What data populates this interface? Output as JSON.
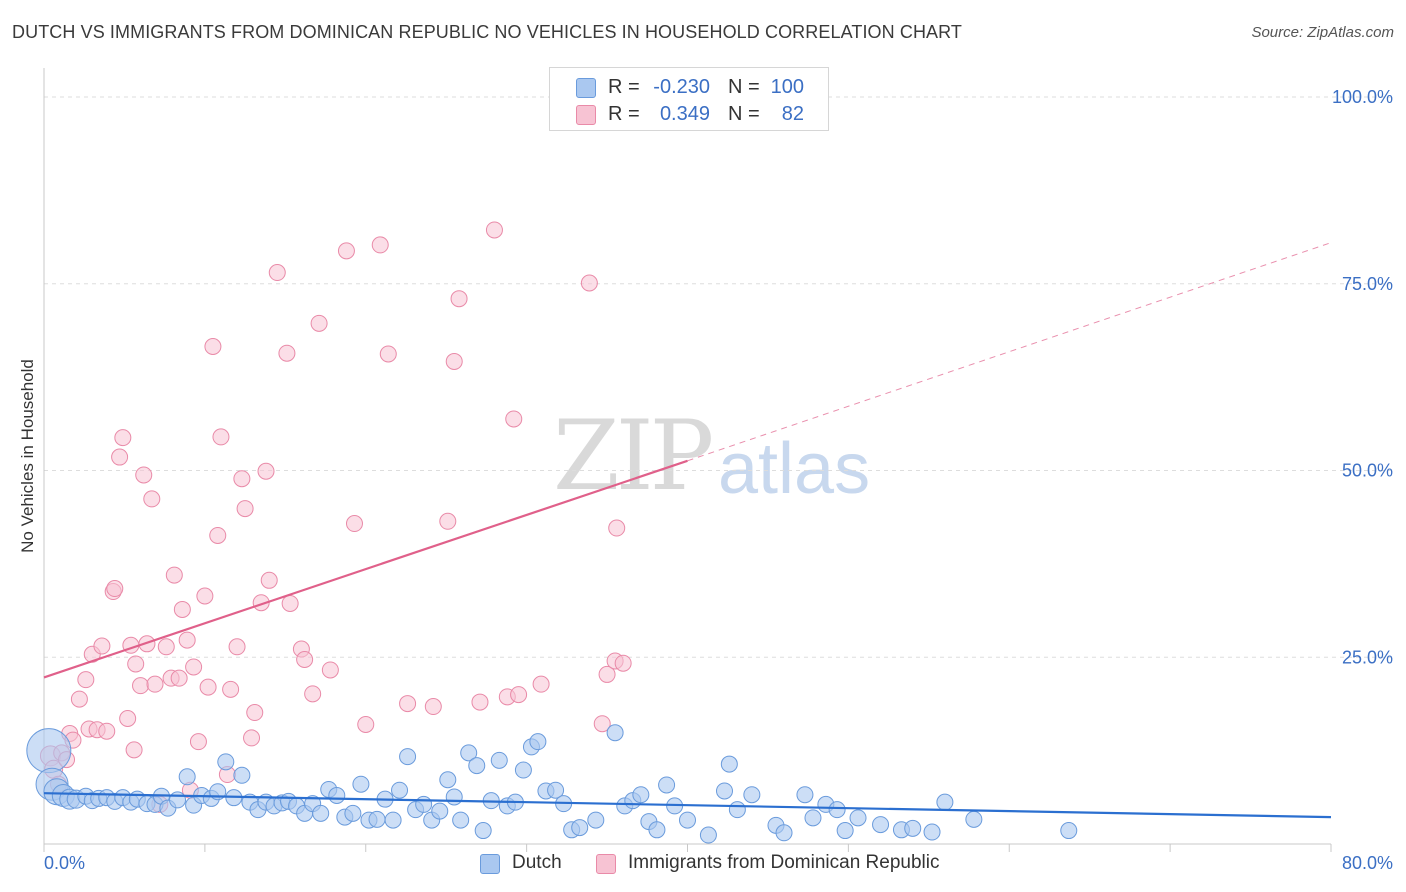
{
  "title": "DUTCH VS IMMIGRANTS FROM DOMINICAN REPUBLIC NO VEHICLES IN HOUSEHOLD CORRELATION CHART",
  "source": "Source: ZipAtlas.com",
  "watermark": {
    "zip": "ZIP",
    "atlas": "atlas"
  },
  "colors": {
    "dutch_fill": "#aac8f0",
    "dutch_stroke": "#6a9bdc",
    "dutch_line": "#2b6fd0",
    "dr_fill": "#f7c3d3",
    "dr_stroke": "#e98aa8",
    "dr_line": "#e0608a",
    "tick_label": "#3b6fc4",
    "grid": "#dddddd"
  },
  "legend": {
    "rows": [
      {
        "r_label": "R =",
        "r_value": "-0.230",
        "n_label": "N =",
        "n_value": "100"
      },
      {
        "r_label": "R =",
        "r_value": "0.349",
        "n_label": "N =",
        "n_value": "82"
      }
    ]
  },
  "bottom_legend": {
    "dutch": "Dutch",
    "dr": "Immigrants from Dominican Republic"
  },
  "chart_data": {
    "type": "scatter",
    "title": "DUTCH VS IMMIGRANTS FROM DOMINICAN REPUBLIC NO VEHICLES IN HOUSEHOLD CORRELATION CHART",
    "xlabel": "",
    "ylabel": "No Vehicles in Household",
    "xlim": [
      0,
      80
    ],
    "ylim": [
      0,
      100
    ],
    "x_tick_labels": [
      "0.0%",
      "80.0%"
    ],
    "y_tick_labels": [
      "25.0%",
      "50.0%",
      "75.0%",
      "100.0%"
    ],
    "y_ticks": [
      25,
      50,
      75,
      100
    ],
    "grid": true,
    "legend_position": "top-center",
    "series": [
      {
        "name": "Dutch",
        "R": -0.23,
        "N": 100,
        "trend": {
          "x": [
            0,
            80
          ],
          "y": [
            6.8,
            3.6
          ],
          "dashed_extension": false
        },
        "points": [
          [
            0.3,
            12.5,
            22
          ],
          [
            0.5,
            8.0,
            16
          ],
          [
            0.8,
            7.0,
            13
          ],
          [
            1.2,
            6.5,
            11
          ],
          [
            1.6,
            6.0,
            10
          ],
          [
            2.0,
            6.0,
            9
          ],
          [
            2.6,
            6.4,
            8
          ],
          [
            3.0,
            5.8,
            8
          ],
          [
            3.4,
            6.1,
            8
          ],
          [
            3.9,
            6.2,
            8
          ],
          [
            4.4,
            5.7,
            8
          ],
          [
            4.9,
            6.2,
            8
          ],
          [
            5.4,
            5.6,
            8
          ],
          [
            5.8,
            6.0,
            8
          ],
          [
            6.4,
            5.4,
            8
          ],
          [
            6.9,
            5.3,
            8
          ],
          [
            7.3,
            6.4,
            8
          ],
          [
            7.7,
            4.8,
            8
          ],
          [
            8.3,
            5.9,
            8
          ],
          [
            8.9,
            9.0,
            8
          ],
          [
            9.3,
            5.2,
            8
          ],
          [
            9.8,
            6.5,
            8
          ],
          [
            10.4,
            6.1,
            8
          ],
          [
            10.8,
            7.0,
            8
          ],
          [
            11.3,
            11.0,
            8
          ],
          [
            11.8,
            6.2,
            8
          ],
          [
            12.3,
            9.2,
            8
          ],
          [
            12.8,
            5.6,
            8
          ],
          [
            13.3,
            4.6,
            8
          ],
          [
            13.8,
            5.6,
            8
          ],
          [
            14.3,
            5.1,
            8
          ],
          [
            14.8,
            5.5,
            8
          ],
          [
            15.2,
            5.7,
            8
          ],
          [
            15.7,
            5.1,
            8
          ],
          [
            16.2,
            4.1,
            8
          ],
          [
            16.7,
            5.4,
            8
          ],
          [
            17.2,
            4.1,
            8
          ],
          [
            17.7,
            7.3,
            8
          ],
          [
            18.2,
            6.5,
            8
          ],
          [
            18.7,
            3.6,
            8
          ],
          [
            19.2,
            4.1,
            8
          ],
          [
            19.7,
            8.0,
            8
          ],
          [
            20.2,
            3.2,
            8
          ],
          [
            20.7,
            3.3,
            8
          ],
          [
            21.2,
            6.0,
            8
          ],
          [
            21.7,
            3.2,
            8
          ],
          [
            22.1,
            7.2,
            8
          ],
          [
            22.6,
            11.7,
            8
          ],
          [
            23.1,
            4.6,
            8
          ],
          [
            23.6,
            5.3,
            8
          ],
          [
            24.1,
            3.2,
            8
          ],
          [
            24.6,
            4.4,
            8
          ],
          [
            25.1,
            8.6,
            8
          ],
          [
            25.5,
            6.3,
            8
          ],
          [
            25.9,
            3.2,
            8
          ],
          [
            26.4,
            12.2,
            8
          ],
          [
            26.9,
            10.5,
            8
          ],
          [
            27.3,
            1.8,
            8
          ],
          [
            27.8,
            5.8,
            8
          ],
          [
            28.3,
            11.2,
            8
          ],
          [
            28.8,
            5.1,
            8
          ],
          [
            29.3,
            5.6,
            8
          ],
          [
            29.8,
            9.9,
            8
          ],
          [
            30.3,
            13.0,
            8
          ],
          [
            30.7,
            13.7,
            8
          ],
          [
            31.2,
            7.1,
            8
          ],
          [
            31.8,
            7.2,
            8
          ],
          [
            32.3,
            5.4,
            8
          ],
          [
            32.8,
            1.9,
            8
          ],
          [
            33.3,
            2.2,
            8
          ],
          [
            34.3,
            3.2,
            8
          ],
          [
            35.5,
            14.9,
            8
          ],
          [
            36.1,
            5.1,
            8
          ],
          [
            36.6,
            5.8,
            8
          ],
          [
            37.1,
            6.6,
            8
          ],
          [
            37.6,
            3.0,
            8
          ],
          [
            38.1,
            1.9,
            8
          ],
          [
            38.7,
            7.9,
            8
          ],
          [
            39.2,
            5.1,
            8
          ],
          [
            40.0,
            3.2,
            8
          ],
          [
            41.3,
            1.2,
            8
          ],
          [
            42.3,
            7.1,
            8
          ],
          [
            42.6,
            10.7,
            8
          ],
          [
            43.1,
            4.6,
            8
          ],
          [
            44.0,
            6.6,
            8
          ],
          [
            45.5,
            2.5,
            8
          ],
          [
            46.0,
            1.5,
            8
          ],
          [
            47.3,
            6.6,
            8
          ],
          [
            47.8,
            3.5,
            8
          ],
          [
            48.6,
            5.3,
            8
          ],
          [
            49.3,
            4.6,
            8
          ],
          [
            49.8,
            1.8,
            8
          ],
          [
            50.6,
            3.5,
            8
          ],
          [
            52.0,
            2.6,
            8
          ],
          [
            53.3,
            1.9,
            8
          ],
          [
            54.0,
            2.1,
            8
          ],
          [
            55.2,
            1.6,
            8
          ],
          [
            56.0,
            5.6,
            8
          ],
          [
            57.8,
            3.3,
            8
          ],
          [
            63.7,
            1.8,
            8
          ]
        ]
      },
      {
        "name": "Immigrants from Dominican Republic",
        "R": 0.349,
        "N": 82,
        "trend": {
          "x": [
            0,
            40
          ],
          "y": [
            22.3,
            51.3
          ],
          "dashed_extension": {
            "x": [
              40,
              80
            ],
            "y": [
              51.3,
              80.5
            ]
          }
        },
        "points": [
          [
            0.4,
            11.8,
            10
          ],
          [
            0.6,
            10.0,
            9
          ],
          [
            0.9,
            8.0,
            8
          ],
          [
            1.1,
            12.2,
            8
          ],
          [
            1.4,
            11.3,
            8
          ],
          [
            1.6,
            14.8,
            8
          ],
          [
            1.8,
            13.9,
            8
          ],
          [
            2.2,
            19.4,
            8
          ],
          [
            2.6,
            22.0,
            8
          ],
          [
            2.8,
            15.4,
            8
          ],
          [
            3.0,
            25.4,
            8
          ],
          [
            3.3,
            15.3,
            8
          ],
          [
            3.6,
            26.5,
            8
          ],
          [
            3.9,
            15.1,
            8
          ],
          [
            4.3,
            33.8,
            8
          ],
          [
            4.4,
            34.2,
            8
          ],
          [
            4.7,
            51.8,
            8
          ],
          [
            4.9,
            54.4,
            8
          ],
          [
            5.2,
            16.8,
            8
          ],
          [
            5.4,
            26.6,
            8
          ],
          [
            5.6,
            12.6,
            8
          ],
          [
            5.7,
            24.1,
            8
          ],
          [
            6.0,
            21.2,
            8
          ],
          [
            6.2,
            49.4,
            8
          ],
          [
            6.4,
            26.8,
            8
          ],
          [
            6.7,
            46.2,
            8
          ],
          [
            6.9,
            21.4,
            8
          ],
          [
            7.2,
            5.3,
            8
          ],
          [
            7.6,
            26.4,
            8
          ],
          [
            7.9,
            22.2,
            8
          ],
          [
            8.1,
            36.0,
            8
          ],
          [
            8.4,
            22.2,
            8
          ],
          [
            8.6,
            31.4,
            8
          ],
          [
            8.9,
            27.3,
            8
          ],
          [
            9.1,
            7.2,
            8
          ],
          [
            9.3,
            23.7,
            8
          ],
          [
            9.6,
            13.7,
            8
          ],
          [
            10.0,
            33.2,
            8
          ],
          [
            10.2,
            21.0,
            8
          ],
          [
            10.5,
            66.6,
            8
          ],
          [
            10.8,
            41.3,
            8
          ],
          [
            11.0,
            54.5,
            8
          ],
          [
            11.4,
            9.3,
            8
          ],
          [
            11.6,
            20.7,
            8
          ],
          [
            12.0,
            26.4,
            8
          ],
          [
            12.3,
            48.9,
            8
          ],
          [
            12.5,
            44.9,
            8
          ],
          [
            12.9,
            14.2,
            8
          ],
          [
            13.1,
            17.6,
            8
          ],
          [
            13.5,
            32.3,
            8
          ],
          [
            13.8,
            49.9,
            8
          ],
          [
            14.0,
            35.3,
            8
          ],
          [
            14.5,
            76.5,
            8
          ],
          [
            15.1,
            65.7,
            8
          ],
          [
            15.3,
            32.2,
            8
          ],
          [
            16.0,
            26.1,
            8
          ],
          [
            16.2,
            24.7,
            8
          ],
          [
            16.7,
            20.1,
            8
          ],
          [
            17.1,
            69.7,
            8
          ],
          [
            17.8,
            23.3,
            8
          ],
          [
            18.8,
            79.4,
            8
          ],
          [
            19.3,
            42.9,
            8
          ],
          [
            20.0,
            16.0,
            8
          ],
          [
            20.9,
            80.2,
            8
          ],
          [
            21.4,
            65.6,
            8
          ],
          [
            22.6,
            18.8,
            8
          ],
          [
            24.2,
            18.4,
            8
          ],
          [
            25.1,
            43.2,
            8
          ],
          [
            25.5,
            64.6,
            8
          ],
          [
            25.8,
            73.0,
            8
          ],
          [
            27.1,
            19.0,
            8
          ],
          [
            28.0,
            82.2,
            8
          ],
          [
            28.8,
            19.7,
            8
          ],
          [
            29.2,
            56.9,
            8
          ],
          [
            29.5,
            20.0,
            8
          ],
          [
            30.9,
            21.4,
            8
          ],
          [
            33.9,
            75.1,
            8
          ],
          [
            34.7,
            16.1,
            8
          ],
          [
            35.0,
            22.7,
            8
          ],
          [
            35.5,
            24.5,
            8
          ],
          [
            36.0,
            24.2,
            8
          ],
          [
            35.6,
            42.3,
            8
          ]
        ]
      }
    ]
  }
}
